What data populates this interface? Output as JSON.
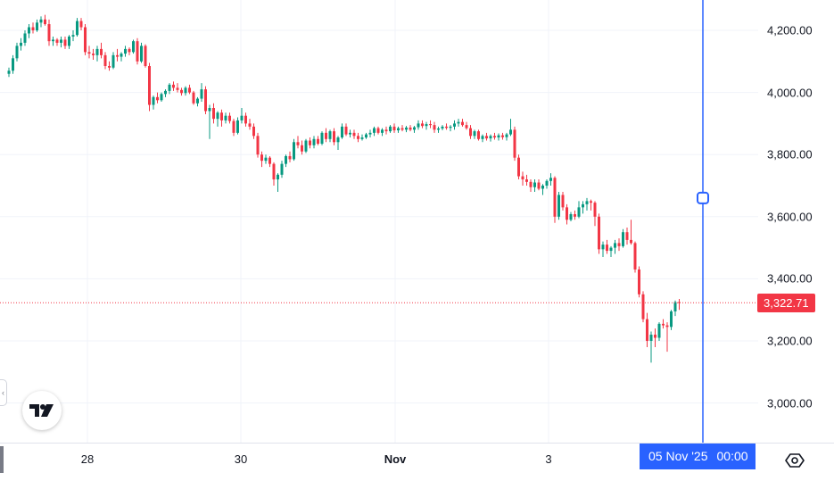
{
  "chart_data": {
    "type": "candlestick",
    "ylim": [
      2880,
      4300
    ],
    "price_ticks": [
      "4,200.00",
      "4,000.00",
      "3,800.00",
      "3,600.00",
      "3,400.00",
      "3,200.00",
      "3,000.00"
    ],
    "price_tick_values": [
      4200,
      4000,
      3800,
      3600,
      3400,
      3200,
      3000
    ],
    "time_ticks": [
      {
        "label": "28",
        "bold": false
      },
      {
        "label": "30",
        "bold": false
      },
      {
        "label": "Nov",
        "bold": true
      },
      {
        "label": "3",
        "bold": false
      }
    ],
    "last_price": "3,322.71",
    "last_price_value": 3322.71,
    "crosshair_time": {
      "date": "05 Nov '25",
      "time": "00:00"
    },
    "crosshair_price_value": 3660,
    "grid": true,
    "colors": {
      "up": "#089981",
      "down": "#f23645",
      "crosshair": "#2962ff",
      "grid": "#f0f3fa"
    },
    "ohlc": [
      [
        4060,
        4080,
        4050,
        4070
      ],
      [
        4070,
        4120,
        4060,
        4110
      ],
      [
        4110,
        4160,
        4100,
        4150
      ],
      [
        4150,
        4175,
        4135,
        4160
      ],
      [
        4160,
        4200,
        4150,
        4190
      ],
      [
        4190,
        4220,
        4175,
        4210
      ],
      [
        4210,
        4225,
        4190,
        4200
      ],
      [
        4200,
        4235,
        4195,
        4225
      ],
      [
        4225,
        4245,
        4210,
        4235
      ],
      [
        4235,
        4250,
        4215,
        4220
      ],
      [
        4220,
        4235,
        4150,
        4165
      ],
      [
        4165,
        4180,
        4150,
        4170
      ],
      [
        4170,
        4175,
        4150,
        4160
      ],
      [
        4160,
        4180,
        4145,
        4170
      ],
      [
        4170,
        4180,
        4140,
        4150
      ],
      [
        4150,
        4185,
        4140,
        4180
      ],
      [
        4180,
        4200,
        4165,
        4185
      ],
      [
        4185,
        4240,
        4180,
        4230
      ],
      [
        4230,
        4240,
        4200,
        4210
      ],
      [
        4210,
        4220,
        4120,
        4130
      ],
      [
        4130,
        4150,
        4110,
        4125
      ],
      [
        4125,
        4140,
        4105,
        4120
      ],
      [
        4120,
        4150,
        4100,
        4140
      ],
      [
        4140,
        4160,
        4110,
        4120
      ],
      [
        4120,
        4130,
        4075,
        4085
      ],
      [
        4085,
        4100,
        4070,
        4080
      ],
      [
        4080,
        4130,
        4075,
        4120
      ],
      [
        4120,
        4140,
        4100,
        4115
      ],
      [
        4115,
        4130,
        4100,
        4125
      ],
      [
        4125,
        4150,
        4115,
        4140
      ],
      [
        4140,
        4145,
        4120,
        4130
      ],
      [
        4130,
        4170,
        4125,
        4165
      ],
      [
        4165,
        4175,
        4090,
        4100
      ],
      [
        4100,
        4160,
        4095,
        4150
      ],
      [
        4150,
        4155,
        4080,
        4085
      ],
      [
        4085,
        4095,
        3940,
        3960
      ],
      [
        3960,
        3990,
        3945,
        3985
      ],
      [
        3985,
        4000,
        3965,
        3975
      ],
      [
        3975,
        4000,
        3970,
        3995
      ],
      [
        3995,
        4010,
        3985,
        4005
      ],
      [
        4005,
        4030,
        3995,
        4025
      ],
      [
        4025,
        4035,
        4005,
        4015
      ],
      [
        4015,
        4030,
        4000,
        4008
      ],
      [
        4008,
        4015,
        3990,
        3998
      ],
      [
        3998,
        4020,
        3990,
        4015
      ],
      [
        4015,
        4025,
        3995,
        4000
      ],
      [
        4000,
        4005,
        3960,
        3965
      ],
      [
        3965,
        3985,
        3955,
        3980
      ],
      [
        3980,
        4030,
        3970,
        4010
      ],
      [
        4010,
        4020,
        3930,
        3940
      ],
      [
        3940,
        3960,
        3850,
        3950
      ],
      [
        3950,
        3965,
        3900,
        3915
      ],
      [
        3915,
        3940,
        3890,
        3935
      ],
      [
        3935,
        3945,
        3890,
        3910
      ],
      [
        3910,
        3935,
        3900,
        3925
      ],
      [
        3925,
        3935,
        3900,
        3908
      ],
      [
        3908,
        3915,
        3860,
        3870
      ],
      [
        3870,
        3920,
        3865,
        3910
      ],
      [
        3910,
        3950,
        3900,
        3925
      ],
      [
        3925,
        3935,
        3890,
        3900
      ],
      [
        3900,
        3915,
        3880,
        3890
      ],
      [
        3890,
        3900,
        3850,
        3860
      ],
      [
        3860,
        3870,
        3790,
        3800
      ],
      [
        3800,
        3810,
        3760,
        3780
      ],
      [
        3780,
        3800,
        3770,
        3790
      ],
      [
        3790,
        3795,
        3760,
        3770
      ],
      [
        3770,
        3775,
        3700,
        3720
      ],
      [
        3720,
        3740,
        3680,
        3735
      ],
      [
        3735,
        3780,
        3725,
        3770
      ],
      [
        3770,
        3800,
        3760,
        3795
      ],
      [
        3795,
        3810,
        3775,
        3785
      ],
      [
        3785,
        3850,
        3780,
        3840
      ],
      [
        3840,
        3860,
        3820,
        3830
      ],
      [
        3830,
        3845,
        3800,
        3810
      ],
      [
        3810,
        3850,
        3805,
        3845
      ],
      [
        3845,
        3855,
        3820,
        3830
      ],
      [
        3830,
        3860,
        3820,
        3850
      ],
      [
        3850,
        3860,
        3830,
        3835
      ],
      [
        3835,
        3875,
        3830,
        3870
      ],
      [
        3870,
        3885,
        3840,
        3850
      ],
      [
        3850,
        3880,
        3840,
        3875
      ],
      [
        3875,
        3885,
        3830,
        3840
      ],
      [
        3840,
        3860,
        3815,
        3855
      ],
      [
        3855,
        3900,
        3850,
        3890
      ],
      [
        3890,
        3900,
        3860,
        3865
      ],
      [
        3865,
        3880,
        3855,
        3870
      ],
      [
        3870,
        3880,
        3850,
        3860
      ],
      [
        3860,
        3870,
        3840,
        3850
      ],
      [
        3850,
        3865,
        3845,
        3855
      ],
      [
        3855,
        3870,
        3850,
        3865
      ],
      [
        3865,
        3880,
        3855,
        3870
      ],
      [
        3870,
        3890,
        3860,
        3885
      ],
      [
        3885,
        3890,
        3865,
        3870
      ],
      [
        3870,
        3885,
        3860,
        3880
      ],
      [
        3880,
        3890,
        3865,
        3875
      ],
      [
        3875,
        3895,
        3870,
        3890
      ],
      [
        3890,
        3900,
        3870,
        3878
      ],
      [
        3878,
        3890,
        3870,
        3885
      ],
      [
        3885,
        3895,
        3875,
        3880
      ],
      [
        3880,
        3892,
        3872,
        3887
      ],
      [
        3887,
        3895,
        3875,
        3880
      ],
      [
        3880,
        3892,
        3870,
        3888
      ],
      [
        3888,
        3910,
        3880,
        3900
      ],
      [
        3900,
        3910,
        3885,
        3892
      ],
      [
        3892,
        3905,
        3880,
        3898
      ],
      [
        3898,
        3910,
        3885,
        3895
      ],
      [
        3895,
        3905,
        3870,
        3880
      ],
      [
        3880,
        3890,
        3870,
        3884
      ],
      [
        3884,
        3895,
        3878,
        3890
      ],
      [
        3890,
        3900,
        3880,
        3886
      ],
      [
        3886,
        3895,
        3875,
        3890
      ],
      [
        3890,
        3910,
        3880,
        3900
      ],
      [
        3900,
        3915,
        3890,
        3905
      ],
      [
        3905,
        3915,
        3890,
        3895
      ],
      [
        3895,
        3905,
        3880,
        3885
      ],
      [
        3885,
        3895,
        3850,
        3860
      ],
      [
        3860,
        3880,
        3850,
        3875
      ],
      [
        3875,
        3880,
        3845,
        3850
      ],
      [
        3850,
        3865,
        3840,
        3860
      ],
      [
        3860,
        3870,
        3845,
        3852
      ],
      [
        3852,
        3865,
        3842,
        3860
      ],
      [
        3860,
        3870,
        3848,
        3855
      ],
      [
        3855,
        3868,
        3845,
        3862
      ],
      [
        3862,
        3870,
        3848,
        3856
      ],
      [
        3856,
        3870,
        3845,
        3865
      ],
      [
        3865,
        3915,
        3860,
        3880
      ],
      [
        3880,
        3890,
        3780,
        3790
      ],
      [
        3790,
        3800,
        3720,
        3730
      ],
      [
        3730,
        3745,
        3700,
        3720
      ],
      [
        3720,
        3735,
        3700,
        3712
      ],
      [
        3712,
        3720,
        3680,
        3695
      ],
      [
        3695,
        3720,
        3680,
        3710
      ],
      [
        3710,
        3720,
        3685,
        3690
      ],
      [
        3690,
        3705,
        3670,
        3700
      ],
      [
        3700,
        3720,
        3690,
        3715
      ],
      [
        3715,
        3740,
        3700,
        3725
      ],
      [
        3725,
        3730,
        3580,
        3600
      ],
      [
        3600,
        3680,
        3590,
        3670
      ],
      [
        3670,
        3680,
        3620,
        3630
      ],
      [
        3630,
        3640,
        3575,
        3590
      ],
      [
        3590,
        3615,
        3585,
        3608
      ],
      [
        3608,
        3620,
        3590,
        3600
      ],
      [
        3600,
        3650,
        3595,
        3630
      ],
      [
        3630,
        3650,
        3610,
        3640
      ],
      [
        3640,
        3660,
        3620,
        3650
      ],
      [
        3650,
        3655,
        3620,
        3645
      ],
      [
        3645,
        3650,
        3570,
        3600
      ],
      [
        3600,
        3610,
        3480,
        3495
      ],
      [
        3495,
        3520,
        3470,
        3510
      ],
      [
        3510,
        3525,
        3480,
        3490
      ],
      [
        3490,
        3505,
        3470,
        3500
      ],
      [
        3500,
        3525,
        3480,
        3515
      ],
      [
        3515,
        3530,
        3490,
        3505
      ],
      [
        3505,
        3560,
        3500,
        3550
      ],
      [
        3550,
        3565,
        3510,
        3525
      ],
      [
        3525,
        3590,
        3510,
        3515
      ],
      [
        3515,
        3520,
        3420,
        3430
      ],
      [
        3430,
        3440,
        3340,
        3350
      ],
      [
        3350,
        3360,
        3260,
        3270
      ],
      [
        3270,
        3290,
        3180,
        3200
      ],
      [
        3200,
        3230,
        3130,
        3220
      ],
      [
        3220,
        3240,
        3180,
        3210
      ],
      [
        3210,
        3260,
        3200,
        3255
      ],
      [
        3255,
        3270,
        3240,
        3250
      ],
      [
        3250,
        3260,
        3165,
        3245
      ],
      [
        3245,
        3300,
        3235,
        3295
      ],
      [
        3295,
        3330,
        3280,
        3325
      ],
      [
        3325,
        3335,
        3300,
        3322.71
      ]
    ]
  }
}
